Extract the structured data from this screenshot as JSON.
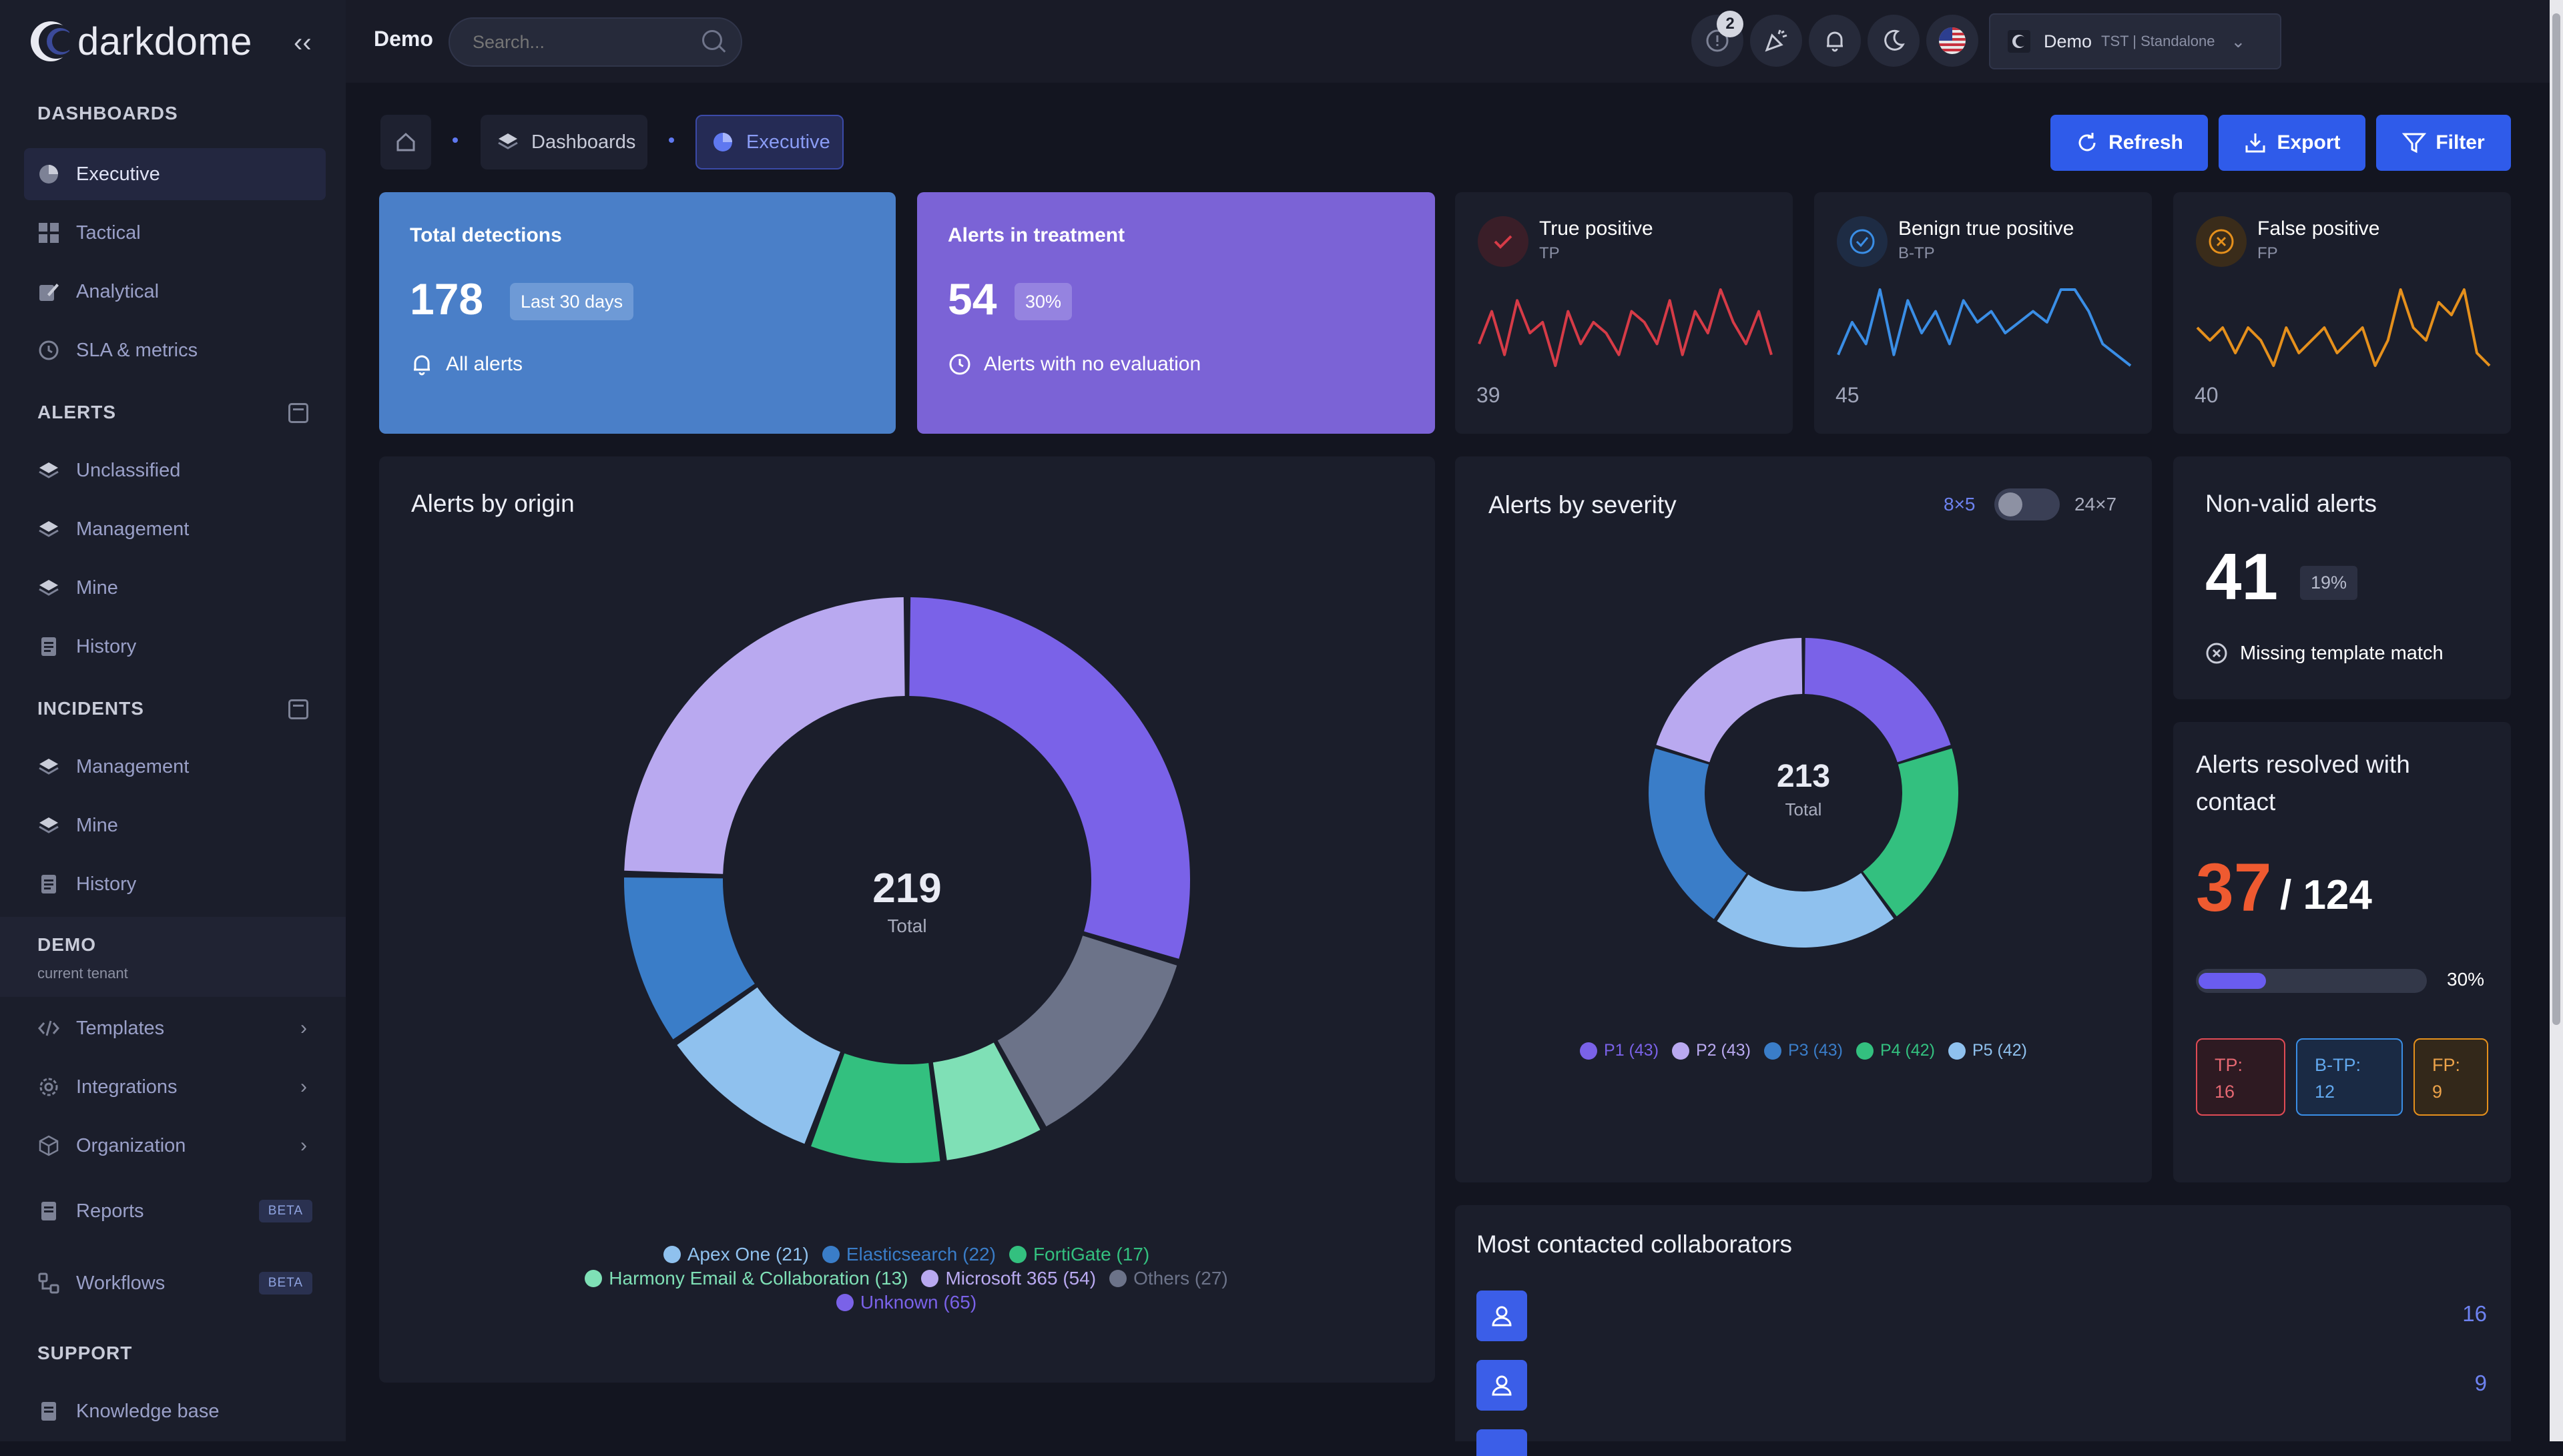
{
  "app": {
    "name": "darkdome"
  },
  "sidebar": {
    "sections": {
      "dashboards": "DASHBOARDS",
      "alerts": "ALERTS",
      "incidents": "INCIDENTS",
      "demo": "DEMO",
      "demo_sub": "current tenant",
      "support": "SUPPORT"
    },
    "dashboards": [
      "Executive",
      "Tactical",
      "Analytical",
      "SLA & metrics"
    ],
    "alerts": [
      "Unclassified",
      "Management",
      "Mine",
      "History"
    ],
    "incidents": [
      "Management",
      "Mine",
      "History"
    ],
    "tenant": [
      "Templates",
      "Integrations",
      "Organization"
    ],
    "reports": {
      "label": "Reports",
      "badge": "BETA"
    },
    "workflows": {
      "label": "Workflows",
      "badge": "BETA"
    },
    "support": [
      "Knowledge base"
    ]
  },
  "topbar": {
    "title": "Demo",
    "search_placeholder": "Search...",
    "notification_count": "2",
    "tenant_name": "Demo",
    "tenant_meta": "TST | Standalone"
  },
  "breadcrumb": {
    "dashboards": "Dashboards",
    "executive": "Executive"
  },
  "actions": {
    "refresh": "Refresh",
    "export": "Export",
    "filter": "Filter"
  },
  "kpis": {
    "total": {
      "title": "Total detections",
      "value": "178",
      "chip": "Last 30 days",
      "foot": "All alerts"
    },
    "treatment": {
      "title": "Alerts in treatment",
      "value": "54",
      "chip": "30%",
      "foot": "Alerts with no evaluation"
    }
  },
  "sparks": [
    {
      "title": "True positive",
      "sub": "TP",
      "value": "39",
      "color": "#d63b47",
      "points": [
        3,
        6,
        2,
        7,
        4,
        5,
        1,
        6,
        3,
        5,
        4,
        2,
        6,
        5,
        3,
        7,
        2,
        6,
        4,
        8,
        5,
        3,
        6,
        2
      ]
    },
    {
      "title": "Benign true positive",
      "sub": "B-TP",
      "value": "45",
      "color": "#3a8ee6",
      "points": [
        2,
        5,
        3,
        8,
        2,
        7,
        4,
        6,
        3,
        7,
        5,
        6,
        4,
        5,
        6,
        5,
        8,
        8,
        6,
        3,
        2,
        1
      ]
    },
    {
      "title": "False positive",
      "sub": "FP",
      "value": "40",
      "color": "#e5901c",
      "points": [
        5,
        4,
        5,
        3,
        5,
        4,
        2,
        5,
        3,
        4,
        5,
        3,
        4,
        5,
        2,
        4,
        8,
        5,
        4,
        7,
        6,
        8,
        3,
        2
      ]
    }
  ],
  "origin": {
    "title": "Alerts by origin",
    "total": "219",
    "total_label": "Total",
    "legend": [
      {
        "label": "Apex One (21)",
        "color": "#8fc1ee"
      },
      {
        "label": "Elasticsearch (22)",
        "color": "#3a7dc8"
      },
      {
        "label": "FortiGate (17)",
        "color": "#33c07f"
      },
      {
        "label": "Harmony Email & Collaboration (13)",
        "color": "#7fe0b6"
      },
      {
        "label": "Microsoft 365 (54)",
        "color": "#b9a9f0"
      },
      {
        "label": "Others (27)",
        "color": "#6c7389"
      },
      {
        "label": "Unknown (65)",
        "color": "#7a62e8"
      }
    ]
  },
  "severity": {
    "title": "Alerts by severity",
    "toggle_left": "8×5",
    "toggle_right": "24×7",
    "total": "213",
    "total_label": "Total",
    "legend": [
      {
        "label": "P1 (43)",
        "color": "#7a62e8"
      },
      {
        "label": "P2 (43)",
        "color": "#b9a9f0"
      },
      {
        "label": "P3 (43)",
        "color": "#3a7dc8"
      },
      {
        "label": "P4 (42)",
        "color": "#33c07f"
      },
      {
        "label": "P5 (42)",
        "color": "#8fc1ee"
      }
    ]
  },
  "nonvalid": {
    "title": "Non-valid alerts",
    "value": "41",
    "chip": "19%",
    "foot": "Missing template match"
  },
  "resolved": {
    "title": "Alerts resolved with contact",
    "value": "37",
    "total": "/ 124",
    "percent": "30%",
    "progress": 0.3,
    "tp": "TP:",
    "tp_val": "16",
    "btp": "B-TP:",
    "btp_val": "12",
    "fp": "FP:",
    "fp_val": "9"
  },
  "collaborators": {
    "title": "Most contacted collaborators",
    "rows": [
      "16",
      "9"
    ]
  },
  "chart_data": [
    {
      "type": "pie",
      "title": "Alerts by origin",
      "categories": [
        "Unknown",
        "Others",
        "Harmony Email & Collaboration",
        "FortiGate",
        "Apex One",
        "Elasticsearch",
        "Microsoft 365"
      ],
      "values": [
        65,
        27,
        13,
        17,
        21,
        22,
        54
      ],
      "colors": [
        "#7a62e8",
        "#6c7389",
        "#7fe0b6",
        "#33c07f",
        "#8fc1ee",
        "#3a7dc8",
        "#b9a9f0"
      ],
      "total": 219,
      "legend": "bottom"
    },
    {
      "type": "pie",
      "title": "Alerts by severity",
      "categories": [
        "P1",
        "P4",
        "P5",
        "P3",
        "P2"
      ],
      "values": [
        43,
        42,
        42,
        43,
        43
      ],
      "colors": [
        "#7a62e8",
        "#33c07f",
        "#8fc1ee",
        "#3a7dc8",
        "#b9a9f0"
      ],
      "total": 213,
      "legend": "bottom"
    }
  ]
}
